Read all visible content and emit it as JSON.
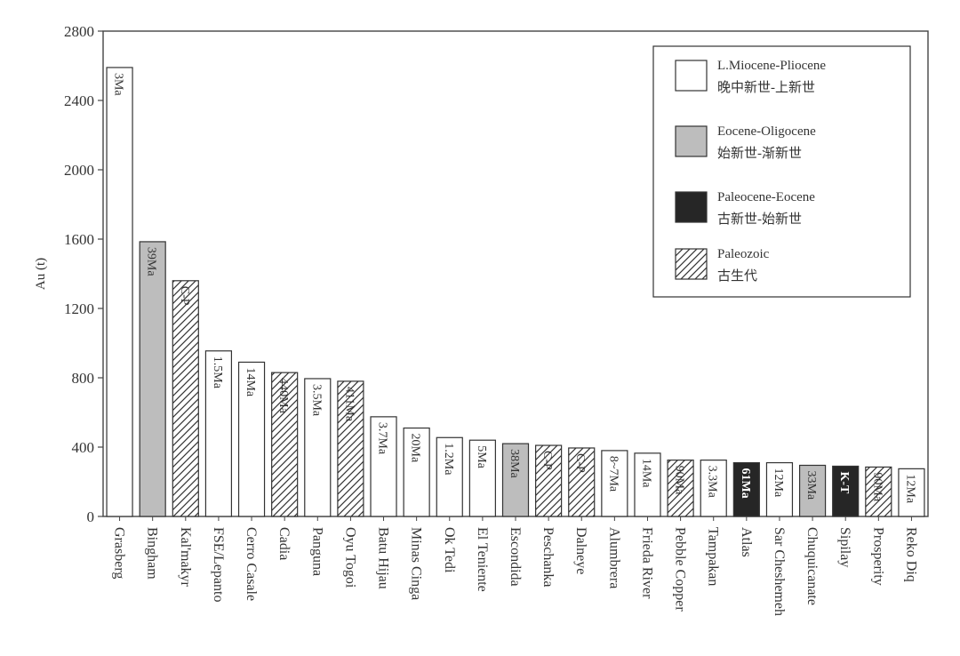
{
  "chart_data": {
    "type": "bar",
    "ylabel": "Au (t)",
    "ylim": [
      0,
      2800
    ],
    "yticks": [
      0,
      400,
      800,
      1200,
      1600,
      2000,
      2400,
      2800
    ],
    "legend_position": "top-right",
    "legend": [
      {
        "key": "lmp",
        "line1": "L.Miocene-Pliocene",
        "line2": "晚中新世-上新世",
        "fill": "#ffffff"
      },
      {
        "key": "eo",
        "line1": "Eocene-Oligocene",
        "line2": "始新世-渐新世",
        "fill": "#bdbdbd"
      },
      {
        "key": "pe",
        "line1": "Paleocene-Eocene",
        "line2": "古新世-始新世",
        "fill": "#262626"
      },
      {
        "key": "pz",
        "line1": "Paleozoic",
        "line2": "古生代",
        "fill": "hatch"
      }
    ],
    "categories": [
      "Grasberg",
      "Bingham",
      "Kal'makyr",
      "FSE/Lepanto",
      "Cerro Casale",
      "Cadia",
      "Panguna",
      "Oyu Togoi",
      "Batu Hijau",
      "Minas Cinga",
      "Ok Tedi",
      "El Teniente",
      "Escondida",
      "Peschanka",
      "Dalneye",
      "Alumbrera",
      "Frieda River",
      "Pebble Copper",
      "Tampakan",
      "Atlas",
      "Sar Cheshemeh",
      "Chuquicanate",
      "Sipilay",
      "Prosperity",
      "Reko Diq"
    ],
    "values": [
      2590,
      1585,
      1360,
      955,
      890,
      830,
      795,
      780,
      575,
      510,
      455,
      440,
      420,
      410,
      395,
      380,
      365,
      325,
      325,
      310,
      310,
      295,
      290,
      285,
      275
    ],
    "group": [
      "lmp",
      "eo",
      "pz",
      "lmp",
      "lmp",
      "pz",
      "lmp",
      "pz",
      "lmp",
      "lmp",
      "lmp",
      "lmp",
      "eo",
      "pz",
      "pz",
      "lmp",
      "lmp",
      "pz",
      "lmp",
      "pe",
      "lmp",
      "eo",
      "pe",
      "pz",
      "lmp"
    ],
    "bar_labels": [
      "3Ma",
      "39Ma",
      "C-P",
      "1.5Ma",
      "14Ma",
      "440Ma",
      "3.5Ma",
      "411Ma",
      "3.7Ma",
      "20Ma",
      "1.2Ma",
      "5Ma",
      "38Ma",
      "C-P",
      "C-P",
      "8~7Ma",
      "14Ma",
      "90Ma",
      "3.3Ma",
      "61Ma",
      "12Ma",
      "33Ma",
      "K-T",
      "90Ma",
      "12Ma"
    ]
  }
}
